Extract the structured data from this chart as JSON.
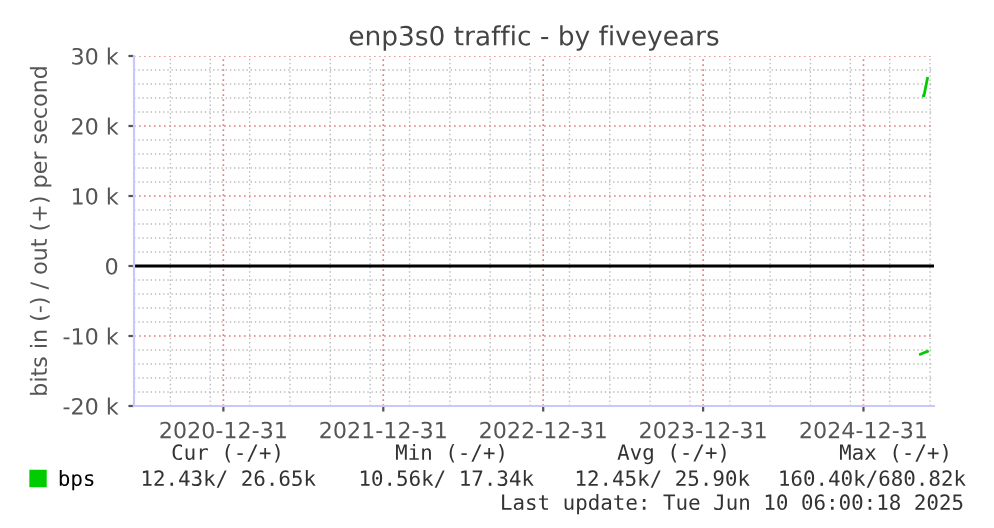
{
  "chart_data": {
    "type": "line",
    "title": "enp3s0 traffic - by fiveyears",
    "ylabel": "bits in (-) / out (+) per second",
    "series": [
      {
        "name": "bps",
        "color": "#00cc00",
        "x": [
          "2025-05-17",
          "2025-05-18",
          "2025-05-26"
        ],
        "values": [
          24300,
          24300,
          26800
        ]
      },
      {
        "color": "#00cc00",
        "x": [
          "2025-05-10",
          "2025-05-18",
          "2025-05-26"
        ],
        "values": [
          -12600,
          -12400,
          -12200
        ]
      }
    ],
    "xlim": [
      "2020-06-10",
      "2025-06-10"
    ],
    "xticks": [
      {
        "value": "2020-12-31",
        "label": "2020-12-31"
      },
      {
        "value": "2021-12-31",
        "label": "2021-12-31"
      },
      {
        "value": "2022-12-31",
        "label": "2022-12-31"
      },
      {
        "value": "2023-12-31",
        "label": "2023-12-31"
      },
      {
        "value": "2024-12-31",
        "label": "2024-12-31"
      }
    ],
    "ylim": [
      -20000,
      30000
    ],
    "yticks": [
      {
        "value": -20000,
        "label": "-20 k"
      },
      {
        "value": -10000,
        "label": "-10 k"
      },
      0,
      {
        "value": 10000,
        "label": "10 k"
      },
      {
        "value": 20000,
        "label": "20 k"
      },
      {
        "value": 30000,
        "label": "30 k"
      }
    ],
    "ref_lines": [
      {
        "axis": "y",
        "value": 0,
        "color": "#000000"
      }
    ],
    "grid": true,
    "legend": "bottom",
    "annotations": [
      "Cur (-/+)",
      "Min (-/+)",
      "Avg (-/+)",
      "Max (-/+)",
      "12.43k/ 26.65k",
      "10.56k/ 17.34k",
      "12.45k/ 25.90k",
      "160.40k/680.82k",
      "Last update: Tue Jun 10 06:00:18 2025"
    ]
  }
}
